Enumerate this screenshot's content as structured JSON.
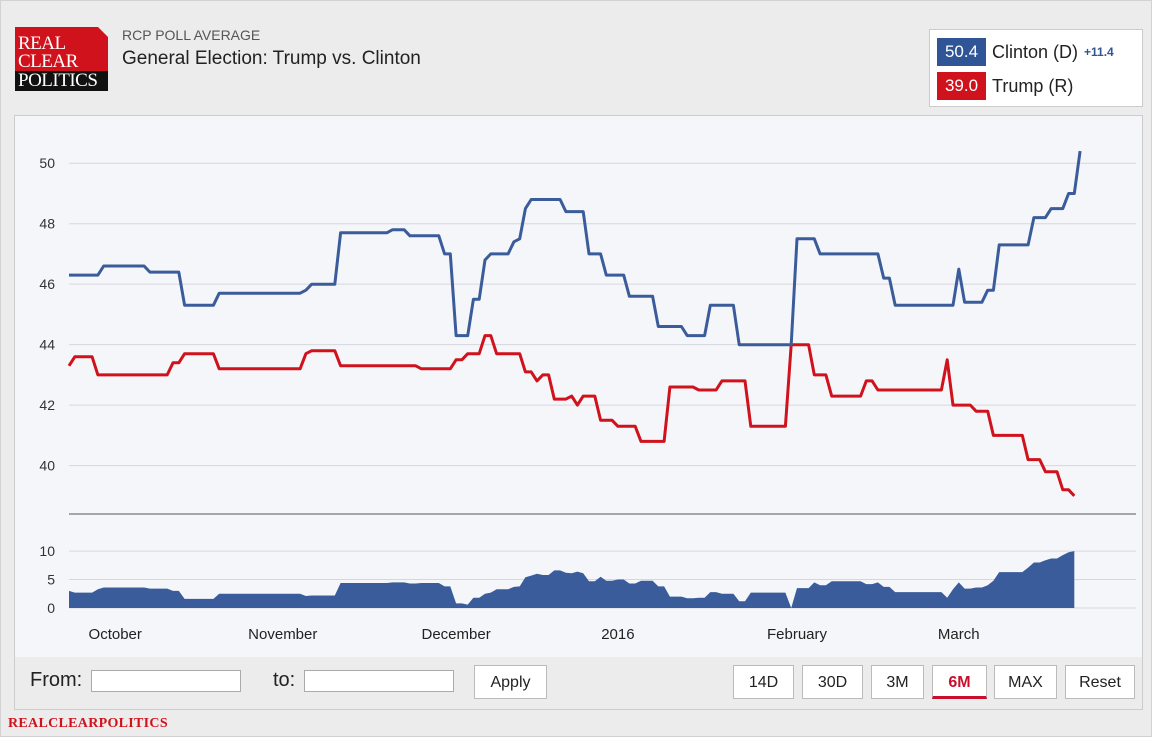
{
  "header": {
    "logo_lines": [
      "REAL",
      "CLEAR",
      "POLITICS"
    ],
    "subtitle": "RCP POLL AVERAGE",
    "title": "General Election: Trump vs. Clinton"
  },
  "legend": {
    "clinton": {
      "value": "50.4",
      "name": "Clinton (D)",
      "diff": "+11.4",
      "color": "#2f5597"
    },
    "trump": {
      "value": "39.0",
      "name": "Trump (R)",
      "color": "#d0121c"
    }
  },
  "chart_data": {
    "type": "line",
    "title": "General Election: Trump vs. Clinton",
    "x_labels": [
      "October",
      "November",
      "December",
      "2016",
      "February",
      "March"
    ],
    "x_label_index": [
      8,
      37,
      67,
      95,
      126,
      154
    ],
    "n_points": 181,
    "ylim": [
      38.4,
      50.9
    ],
    "yticks": [
      40,
      42,
      44,
      46,
      48,
      50
    ],
    "series": [
      {
        "name": "Clinton (D)",
        "color": "#3b5c9b",
        "segments": [
          [
            0,
            46.3
          ],
          [
            5,
            46.3
          ],
          [
            6,
            46.6
          ],
          [
            13,
            46.6
          ],
          [
            14,
            46.4
          ],
          [
            19,
            46.4
          ],
          [
            20,
            45.3
          ],
          [
            25,
            45.3
          ],
          [
            26,
            45.7
          ],
          [
            40,
            45.7
          ],
          [
            41,
            45.8
          ],
          [
            42,
            46.0
          ],
          [
            46,
            46.0
          ],
          [
            47,
            47.7
          ],
          [
            55,
            47.7
          ],
          [
            56,
            47.8
          ],
          [
            58,
            47.8
          ],
          [
            59,
            47.6
          ],
          [
            64,
            47.6
          ],
          [
            65,
            47.0
          ],
          [
            66,
            47.0
          ],
          [
            67,
            44.3
          ],
          [
            69,
            44.3
          ],
          [
            70,
            45.5
          ],
          [
            71,
            45.5
          ],
          [
            72,
            46.8
          ],
          [
            73,
            47.0
          ],
          [
            76,
            47.0
          ],
          [
            77,
            47.4
          ],
          [
            78,
            47.5
          ],
          [
            79,
            48.5
          ],
          [
            80,
            48.8
          ],
          [
            85,
            48.8
          ],
          [
            86,
            48.4
          ],
          [
            89,
            48.4
          ],
          [
            90,
            47.0
          ],
          [
            92,
            47.0
          ],
          [
            93,
            46.3
          ],
          [
            96,
            46.3
          ],
          [
            97,
            45.6
          ],
          [
            101,
            45.6
          ],
          [
            102,
            44.6
          ],
          [
            106,
            44.6
          ],
          [
            107,
            44.3
          ],
          [
            110,
            44.3
          ],
          [
            111,
            45.3
          ],
          [
            115,
            45.3
          ],
          [
            116,
            44.0
          ],
          [
            125,
            44.0
          ],
          [
            126,
            47.5
          ],
          [
            129,
            47.5
          ],
          [
            130,
            47.0
          ],
          [
            140,
            47.0
          ],
          [
            141,
            46.2
          ],
          [
            142,
            46.2
          ],
          [
            143,
            45.3
          ],
          [
            153,
            45.3
          ],
          [
            154,
            46.5
          ],
          [
            155,
            45.4
          ],
          [
            158,
            45.4
          ],
          [
            159,
            45.8
          ],
          [
            160,
            45.8
          ],
          [
            161,
            47.3
          ],
          [
            166,
            47.3
          ],
          [
            167,
            48.2
          ],
          [
            169,
            48.2
          ],
          [
            170,
            48.5
          ],
          [
            172,
            48.5
          ],
          [
            173,
            49.0
          ],
          [
            174,
            49.0
          ],
          [
            175,
            50.4
          ]
        ]
      },
      {
        "name": "Trump (R)",
        "color": "#d0121c",
        "segments": [
          [
            0,
            43.3
          ],
          [
            1,
            43.6
          ],
          [
            4,
            43.6
          ],
          [
            5,
            43.0
          ],
          [
            17,
            43.0
          ],
          [
            18,
            43.4
          ],
          [
            19,
            43.4
          ],
          [
            20,
            43.7
          ],
          [
            25,
            43.7
          ],
          [
            26,
            43.2
          ],
          [
            40,
            43.2
          ],
          [
            41,
            43.7
          ],
          [
            42,
            43.8
          ],
          [
            46,
            43.8
          ],
          [
            47,
            43.3
          ],
          [
            60,
            43.3
          ],
          [
            61,
            43.2
          ],
          [
            66,
            43.2
          ],
          [
            67,
            43.5
          ],
          [
            68,
            43.5
          ],
          [
            69,
            43.7
          ],
          [
            71,
            43.7
          ],
          [
            72,
            44.3
          ],
          [
            73,
            44.3
          ],
          [
            74,
            43.7
          ],
          [
            78,
            43.7
          ],
          [
            79,
            43.1
          ],
          [
            80,
            43.1
          ],
          [
            81,
            42.8
          ],
          [
            82,
            43.0
          ],
          [
            83,
            43.0
          ],
          [
            84,
            42.2
          ],
          [
            86,
            42.2
          ],
          [
            87,
            42.3
          ],
          [
            88,
            42.0
          ],
          [
            89,
            42.3
          ],
          [
            91,
            42.3
          ],
          [
            92,
            41.5
          ],
          [
            94,
            41.5
          ],
          [
            95,
            41.3
          ],
          [
            98,
            41.3
          ],
          [
            99,
            40.8
          ],
          [
            103,
            40.8
          ],
          [
            104,
            42.6
          ],
          [
            108,
            42.6
          ],
          [
            109,
            42.5
          ],
          [
            112,
            42.5
          ],
          [
            113,
            42.8
          ],
          [
            117,
            42.8
          ],
          [
            118,
            41.3
          ],
          [
            124,
            41.3
          ],
          [
            125,
            44.0
          ],
          [
            128,
            44.0
          ],
          [
            129,
            43.0
          ],
          [
            131,
            43.0
          ],
          [
            132,
            42.3
          ],
          [
            137,
            42.3
          ],
          [
            138,
            42.8
          ],
          [
            139,
            42.8
          ],
          [
            140,
            42.5
          ],
          [
            151,
            42.5
          ],
          [
            152,
            43.5
          ],
          [
            153,
            42.0
          ],
          [
            156,
            42.0
          ],
          [
            157,
            41.8
          ],
          [
            159,
            41.8
          ],
          [
            160,
            41.0
          ],
          [
            165,
            41.0
          ],
          [
            166,
            40.2
          ],
          [
            168,
            40.2
          ],
          [
            169,
            39.8
          ],
          [
            171,
            39.8
          ],
          [
            172,
            39.2
          ],
          [
            173,
            39.2
          ],
          [
            174,
            39.0
          ]
        ]
      }
    ],
    "spread": {
      "name": "Spread",
      "ylim": [
        0,
        13
      ],
      "yticks": [
        0,
        5,
        10
      ]
    }
  },
  "controls": {
    "from_label": "From:",
    "to_label": "to:",
    "apply_label": "Apply",
    "ranges": [
      "14D",
      "30D",
      "3M",
      "6M",
      "MAX",
      "Reset"
    ],
    "active_range": "6M"
  },
  "footer": {
    "text": "REALCLEARPOLITICS"
  }
}
